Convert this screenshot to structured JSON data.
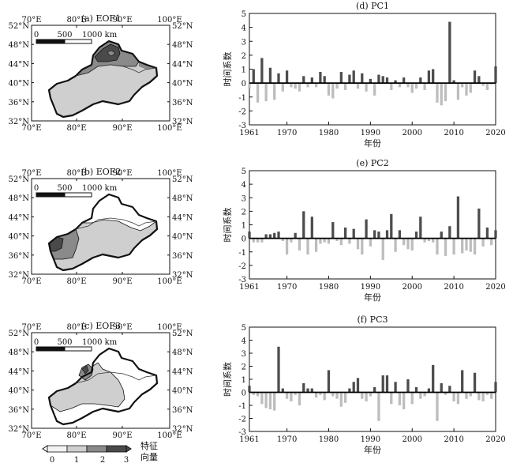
{
  "colorbar": {
    "ticks": [
      "0",
      "1",
      "2",
      "3"
    ],
    "label_line1": "特征",
    "label_line2": "向量",
    "colors": [
      "#f2f2f2",
      "#cfcfcf",
      "#8a8a8a",
      "#4a4a4a"
    ]
  },
  "maps": [
    {
      "title": "(a) EOF1",
      "scale_labels": [
        "0",
        "500",
        "1000 km"
      ],
      "lon_labels": [
        "70°E",
        "80°E",
        "90°E",
        "100°E"
      ],
      "lat_labels": [
        "52°N",
        "48°N",
        "44°N",
        "40°N",
        "36°N",
        "32°N"
      ]
    },
    {
      "title": "(b) EOF2",
      "scale_labels": [
        "0",
        "500",
        "1000 km"
      ],
      "lon_labels": [
        "70°E",
        "80°E",
        "90°E",
        "100°E"
      ],
      "lat_labels": [
        "52°N",
        "48°N",
        "44°N",
        "40°N",
        "36°N",
        "32°N"
      ]
    },
    {
      "title": "(c) EOF3",
      "scale_labels": [
        "0",
        "500",
        "1000 km"
      ],
      "lon_labels": [
        "70°E",
        "80°E",
        "90°E",
        "100°E"
      ],
      "lat_labels": [
        "52°N",
        "48°N",
        "44°N",
        "40°N",
        "36°N",
        "32°N"
      ]
    }
  ],
  "chart_data": [
    {
      "type": "bar",
      "title": "(d) PC1",
      "xlabel": "年份",
      "ylabel": "时间系数",
      "xlim": [
        1961,
        2020
      ],
      "ylim": [
        -3,
        5
      ],
      "xticks": [
        "1961",
        "1970",
        "1980",
        "1990",
        "2000",
        "2010",
        "2020"
      ],
      "yticks": [
        "-3",
        "-2",
        "-1",
        "0",
        "1",
        "2",
        "3",
        "4",
        "5"
      ],
      "positive_color": "#4d4d4d",
      "negative_color": "#bdbdbd",
      "x": [
        1961,
        1962,
        1963,
        1964,
        1965,
        1966,
        1967,
        1968,
        1969,
        1970,
        1971,
        1972,
        1973,
        1974,
        1975,
        1976,
        1977,
        1978,
        1979,
        1980,
        1981,
        1982,
        1983,
        1984,
        1985,
        1986,
        1987,
        1988,
        1989,
        1990,
        1991,
        1992,
        1993,
        1994,
        1995,
        1996,
        1997,
        1998,
        1999,
        2000,
        2001,
        2002,
        2003,
        2004,
        2005,
        2006,
        2007,
        2008,
        2009,
        2010,
        2011,
        2012,
        2013,
        2014,
        2015,
        2016,
        2017,
        2018,
        2019,
        2020
      ],
      "values": [
        -0.4,
        1.0,
        -1.4,
        1.8,
        -1.3,
        1.1,
        -1.2,
        0.7,
        -0.6,
        0.9,
        -0.3,
        -0.4,
        -0.6,
        0.5,
        -0.3,
        0.4,
        -0.3,
        0.8,
        0.5,
        -0.9,
        -1.1,
        -0.4,
        0.8,
        -0.5,
        0.6,
        0.9,
        -0.4,
        0.7,
        -0.6,
        0.3,
        -0.9,
        0.6,
        0.5,
        0.4,
        -0.5,
        0.2,
        -0.3,
        0.4,
        -0.3,
        -0.7,
        -0.4,
        0.4,
        -0.5,
        0.9,
        1.0,
        -1.4,
        -1.6,
        -1.3,
        4.4,
        0.2,
        -1.2,
        -0.3,
        -0.9,
        -0.7,
        0.9,
        0.5,
        -0.2,
        -0.5,
        -0.1,
        1.2
      ]
    },
    {
      "type": "bar",
      "title": "(e) PC2",
      "xlabel": "年份",
      "ylabel": "时间系数",
      "xlim": [
        1961,
        2020
      ],
      "ylim": [
        -3,
        5
      ],
      "xticks": [
        "1961",
        "1970",
        "1980",
        "1990",
        "2000",
        "2010",
        "2020"
      ],
      "yticks": [
        "-3",
        "-2",
        "-1",
        "0",
        "1",
        "2",
        "3",
        "4",
        "5"
      ],
      "positive_color": "#4d4d4d",
      "negative_color": "#bdbdbd",
      "x": [
        1961,
        1962,
        1963,
        1964,
        1965,
        1966,
        1967,
        1968,
        1969,
        1970,
        1971,
        1972,
        1973,
        1974,
        1975,
        1976,
        1977,
        1978,
        1979,
        1980,
        1981,
        1982,
        1983,
        1984,
        1985,
        1986,
        1987,
        1988,
        1989,
        1990,
        1991,
        1992,
        1993,
        1994,
        1995,
        1996,
        1997,
        1998,
        1999,
        2000,
        2001,
        2002,
        2003,
        2004,
        2005,
        2006,
        2007,
        2008,
        2009,
        2010,
        2011,
        2012,
        2013,
        2014,
        2015,
        2016,
        2017,
        2018,
        2019,
        2020
      ],
      "values": [
        0.5,
        -0.3,
        -0.3,
        -0.3,
        0.3,
        0.3,
        0.4,
        0.5,
        -0.2,
        -1.2,
        -0.3,
        0.4,
        -0.9,
        2.0,
        -1.2,
        1.6,
        -1.0,
        -0.4,
        -0.3,
        -0.4,
        1.2,
        -0.2,
        -0.5,
        0.8,
        -0.4,
        0.7,
        -0.8,
        -1.2,
        1.4,
        -0.6,
        0.6,
        0.5,
        -1.6,
        0.6,
        1.8,
        -1.0,
        0.6,
        -0.5,
        -0.8,
        -0.9,
        0.5,
        1.6,
        -0.3,
        -0.2,
        -0.3,
        -1.2,
        0.5,
        -1.3,
        0.9,
        -1.2,
        3.1,
        -1.1,
        -0.9,
        -1.0,
        -1.2,
        2.2,
        -0.6,
        0.8,
        -0.5,
        0.6
      ]
    },
    {
      "type": "bar",
      "title": "(f) PC3",
      "xlabel": "年份",
      "ylabel": "时间系数",
      "xlim": [
        1961,
        2020
      ],
      "ylim": [
        -3,
        5
      ],
      "xticks": [
        "1961",
        "1970",
        "1980",
        "1990",
        "2000",
        "2010",
        "2020"
      ],
      "yticks": [
        "-3",
        "-2",
        "-1",
        "0",
        "1",
        "2",
        "3",
        "4",
        "5"
      ],
      "positive_color": "#4d4d4d",
      "negative_color": "#bdbdbd",
      "x": [
        1961,
        1962,
        1963,
        1964,
        1965,
        1966,
        1967,
        1968,
        1969,
        1970,
        1971,
        1972,
        1973,
        1974,
        1975,
        1976,
        1977,
        1978,
        1979,
        1980,
        1981,
        1982,
        1983,
        1984,
        1985,
        1986,
        1987,
        1988,
        1989,
        1990,
        1991,
        1992,
        1993,
        1994,
        1995,
        1996,
        1997,
        1998,
        1999,
        2000,
        2001,
        2002,
        2003,
        2004,
        2005,
        2006,
        2007,
        2008,
        2009,
        2010,
        2011,
        2012,
        2013,
        2014,
        2015,
        2016,
        2017,
        2018,
        2019,
        2020
      ],
      "values": [
        0.5,
        -0.2,
        -0.3,
        -0.9,
        -1.2,
        -1.3,
        -1.4,
        3.5,
        0.3,
        -0.5,
        -0.7,
        -0.2,
        -1.0,
        0.7,
        0.3,
        0.3,
        -0.4,
        -0.2,
        -0.6,
        1.7,
        -0.3,
        -0.5,
        -1.1,
        -0.8,
        0.3,
        0.8,
        1.1,
        -0.5,
        -0.7,
        -0.3,
        0.4,
        -2.2,
        1.3,
        1.3,
        -0.9,
        0.8,
        -1.0,
        -1.3,
        1.0,
        -0.9,
        0.4,
        -0.5,
        -0.3,
        0.3,
        2.1,
        -2.2,
        0.7,
        -0.2,
        0.5,
        -0.7,
        -0.9,
        1.7,
        -0.5,
        -0.3,
        1.5,
        -0.6,
        -0.7,
        -0.2,
        -0.5,
        0.8
      ]
    }
  ]
}
